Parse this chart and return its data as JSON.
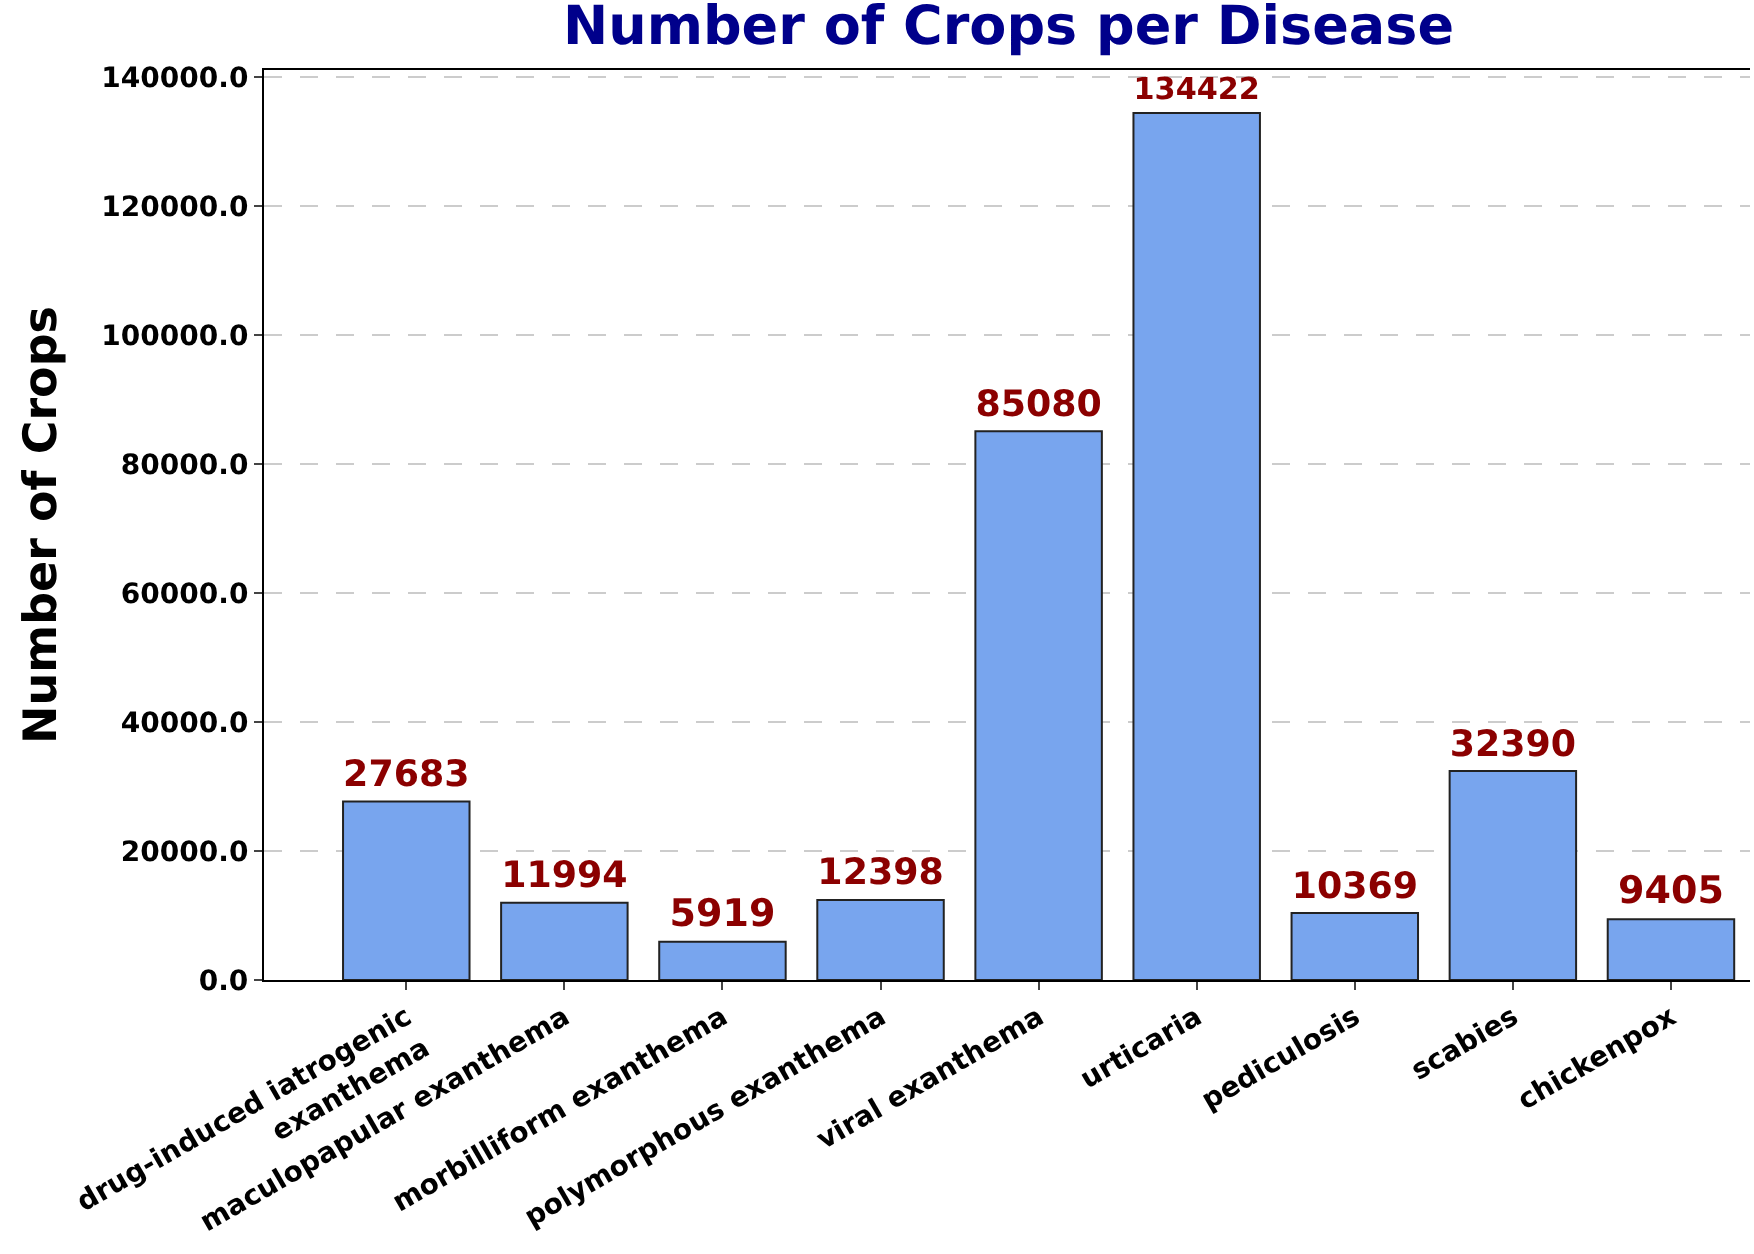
{
  "chart_data": {
    "type": "bar",
    "title": "Number of Crops per Disease",
    "ylabel": "Number of Crops",
    "categories": [
      "drug-induced iatrogenic\nexanthema",
      "maculopapular exanthema",
      "morbilliform exanthema",
      "polymorphous exanthema",
      "viral exanthema",
      "urticaria",
      "pediculosis",
      "scabies",
      "chickenpox"
    ],
    "values": [
      27683,
      11994,
      5919,
      12398,
      85080,
      134422,
      10369,
      32390,
      9405
    ],
    "color": "#78a5ee",
    "ylim": [
      0,
      141100
    ],
    "yticks": [
      {
        "value": 0,
        "label": "0.0"
      },
      {
        "value": 20000,
        "label": "20000.0"
      },
      {
        "value": 40000,
        "label": "40000.0"
      },
      {
        "value": 60000,
        "label": "60000.0"
      },
      {
        "value": 80000,
        "label": "80000.0"
      },
      {
        "value": 100000,
        "label": "100000.0"
      },
      {
        "value": 120000,
        "label": "120000.0"
      },
      {
        "value": 140000,
        "label": "140000.0"
      }
    ],
    "grid": "y",
    "data_labels": true
  }
}
